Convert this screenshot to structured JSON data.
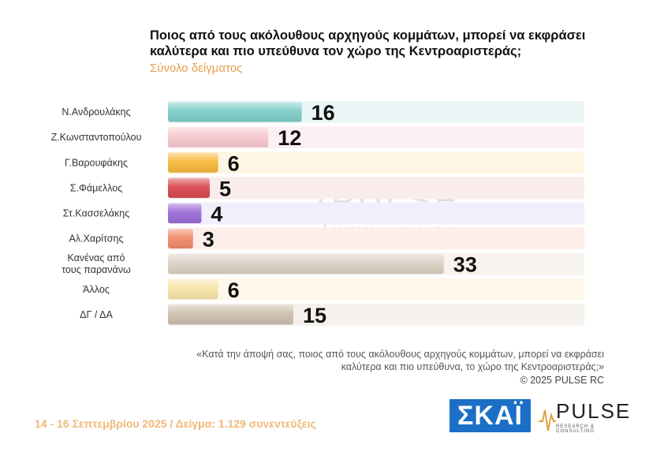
{
  "header": {
    "title": "Ποιος από τους ακόλουθους αρχηγούς κομμάτων, μπορεί να εκφράσει καλύτερα και πιο υπεύθυνα τον χώρο της Κεντροαριστεράς;",
    "subtitle": "Σύνολο δείγματος"
  },
  "chart_data": {
    "type": "bar",
    "orientation": "horizontal",
    "categories": [
      "Ν.Ανδρουλάκης",
      "Ζ.Κωνσταντοπούλου",
      "Γ.Βαρουφάκης",
      "Σ.Φάμελλος",
      "Στ.Κασσελάκης",
      "Αλ.Χαρίτσης",
      "Κανένας από τους παρανάνω",
      "Άλλος",
      "ΔΓ / ΔΑ"
    ],
    "category_lines": [
      [
        "Ν.Ανδρουλάκης"
      ],
      [
        "Ζ.Κωνσταντοπούλου"
      ],
      [
        "Γ.Βαρουφάκης"
      ],
      [
        "Σ.Φάμελλος"
      ],
      [
        "Στ.Κασσελάκης"
      ],
      [
        "Αλ.Χαρίτσης"
      ],
      [
        "Κανένας από",
        "τους παρανάνω"
      ],
      [
        "Άλλος"
      ],
      [
        "ΔΓ / ΔΑ"
      ]
    ],
    "values": [
      16,
      12,
      6,
      5,
      4,
      3,
      33,
      6,
      15
    ],
    "colors": [
      "#7ecdc8",
      "#f6c8cf",
      "#f7b83a",
      "#d9484f",
      "#9b6ad6",
      "#f08a6a",
      "#dcd0c3",
      "#f6e3a6",
      "#cdbfae"
    ],
    "row_tints": [
      "#eaf6f5",
      "#fdf0f2",
      "#fef6e2",
      "#fbecec",
      "#f3eefb",
      "#fdeeea",
      "#f7f3ef",
      "#fdf8ea",
      "#f5f1ec"
    ]
  },
  "watermark": {
    "name": "PULSE",
    "sub": "RESEARCH & CONSULTING"
  },
  "footnote": {
    "question": "«Κατά την άποψή σας, ποιος από τους ακόλουθους αρχηγούς κομμάτων, μπορεί να εκφράσει καλύτερα και πιο υπεύθυνα, το χώρο της Κεντροαριστεράς;»",
    "copyright": "© 2025 PULSE RC"
  },
  "footer": {
    "text": "14 - 16 Σεπτεμβρίου 2025 / Δείγμα: 1.129 συνεντεύξεις"
  },
  "logos": {
    "skai": "ΣΚΑΪ",
    "pulse": "PULSE",
    "pulse_sub": "RESEARCH & CONSULTING"
  }
}
